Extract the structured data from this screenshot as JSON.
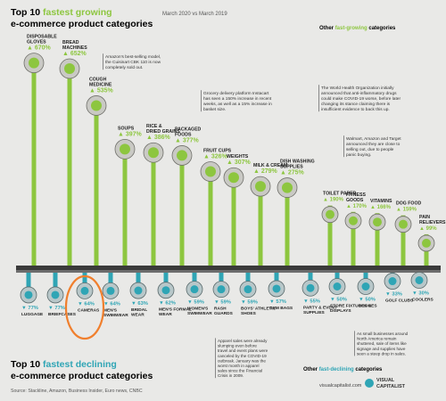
{
  "titles": {
    "top_line1_prefix": "Top 10",
    "top_line1_highlight": "fastest growing",
    "top_line2": "e-commerce product categories",
    "period": "March 2020 vs March 2019",
    "bottom_line1_prefix": "Top 10",
    "bottom_line1_highlight": "fastest declining",
    "bottom_line2": "e-commerce product categories",
    "other_growing": [
      "Other",
      "fast-growing",
      "categories"
    ],
    "other_declining": [
      "Other",
      "fast-declining",
      "categories"
    ]
  },
  "source": "Source: Stackline, Amazon, Business Insider, Euro news, CNBC",
  "brand": {
    "url": "visualcapitalist.com",
    "line1": "VISUAL",
    "line2": "CAPITALIST"
  },
  "colors": {
    "green": "#8dc63f",
    "teal": "#2fa5b5",
    "dark": "#333333",
    "accent": "#f07f2d"
  },
  "chart_data": {
    "type": "bar",
    "growing": [
      {
        "label": "DISPOSABLE GLOVES",
        "value": 670
      },
      {
        "label": "BREAD MACHINES",
        "value": 652
      },
      {
        "label": "COUGH MEDICINE",
        "value": 535
      },
      {
        "label": "SOUPS",
        "value": 397
      },
      {
        "label": "RICE & DRIED GRAINS",
        "value": 386
      },
      {
        "label": "PACKAGED FOODS",
        "value": 377
      },
      {
        "label": "FRUIT CUPS",
        "value": 326
      },
      {
        "label": "WEIGHTS",
        "value": 307
      },
      {
        "label": "MILK & CREAM",
        "value": 279
      },
      {
        "label": "DISH WASHING SUPPLIES",
        "value": 275
      }
    ],
    "other_growing": [
      {
        "label": "TOILET PAPER",
        "value": 190
      },
      {
        "label": "FITNESS GOODS",
        "value": 170
      },
      {
        "label": "VITAMINS",
        "value": 166
      },
      {
        "label": "DOG FOOD",
        "value": 159
      },
      {
        "label": "PAIN RELIEVERS",
        "value": 99
      }
    ],
    "declining": [
      {
        "label": "LUGGAGE",
        "value": -77
      },
      {
        "label": "BRIEFCASES",
        "value": -77
      },
      {
        "label": "CAMERAS",
        "value": -64
      },
      {
        "label": "MEN'S SWIMWEAR",
        "value": -64
      },
      {
        "label": "BRIDAL WEAR",
        "value": -63
      },
      {
        "label": "MEN'S FORMAL WEAR",
        "value": -62
      },
      {
        "label": "WOMEN'S SWIMWEAR",
        "value": -59
      },
      {
        "label": "RASH GUARDS",
        "value": -59
      },
      {
        "label": "BOYS' ATHLETIC SHOES",
        "value": -59
      },
      {
        "label": "GYM BAGS",
        "value": -57
      }
    ],
    "other_declining": [
      {
        "label": "PARTY & EVENT SUPPLIES",
        "value": -55
      },
      {
        "label": "STORE FIXTURES & DISPLAYS",
        "value": -50
      },
      {
        "label": "DRONES",
        "value": -50
      },
      {
        "label": "GOLF CLUBS",
        "value": -33
      },
      {
        "label": "COOLERS",
        "value": -30
      }
    ],
    "highlighted": "CAMERAS"
  },
  "annotations": {
    "bread": [
      "Amazon's best-selling model,",
      "the Cuisinart CBK 110 is now",
      "completely sold out."
    ],
    "instacart": [
      "Grocery delivery platform Instacart",
      "has seen a 150% increase in recent",
      "weeks, as well as a 15% increase in",
      "basket size."
    ],
    "who": [
      "The World Health Organization initially",
      "announced that anti-inflammatory drugs",
      "could make COVID-19 worse, before later",
      "changing its stance claiming there is",
      "insufficient evidence to back this up."
    ],
    "walmart": [
      "Walmart, Amazon and Target",
      "announced they are close to",
      "selling out, due to people",
      "panic buying."
    ],
    "apparel": [
      "Apparel sales were already",
      "slumping even before",
      "travel and event plans were",
      "canceled by the COVID-19",
      "outbreak. January was the",
      "worst month in apparel",
      "sales since the Financial",
      "Crisis in 2009."
    ],
    "small_biz": [
      "As small businesses around",
      "North America remain",
      "shuttered, sale of items like",
      "signage and supplies have",
      "seen a steep drop in sales."
    ]
  },
  "icons": [
    "glove-icon",
    "bread-machine-icon",
    "medicine-bottle-icon",
    "soup-can-icon",
    "rice-bag-icon",
    "packaged-food-icon",
    "fruit-cup-icon",
    "weight-icon",
    "milk-icon",
    "dish-soap-icon",
    "toilet-paper-icon",
    "fitness-icon",
    "vitamins-icon",
    "dog-food-icon",
    "pills-icon"
  ]
}
